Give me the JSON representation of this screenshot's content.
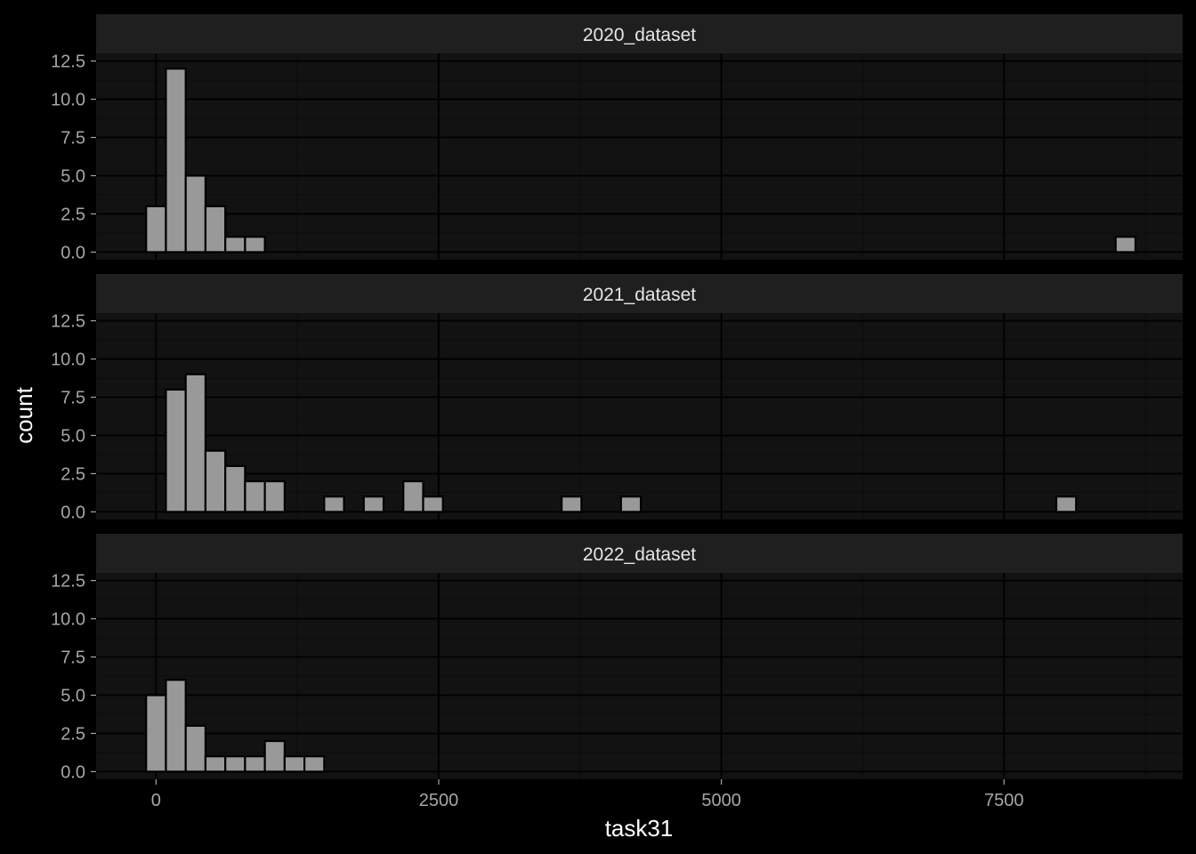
{
  "chart_data": {
    "type": "bar",
    "subtype": "faceted-histogram",
    "xlabel": "task31",
    "ylabel": "count",
    "xlim": [
      -530,
      9080
    ],
    "ylim": [
      -0.5,
      13
    ],
    "x_ticks": [
      0,
      2500,
      5000,
      7500
    ],
    "x_tick_labels": [
      "0",
      "2500",
      "5000",
      "7500"
    ],
    "y_ticks": [
      0,
      2.5,
      5,
      7.5,
      10,
      12.5
    ],
    "y_tick_labels": [
      "0.0",
      "2.5",
      "5.0",
      "7.5",
      "10.0",
      "12.5"
    ],
    "bin_width": 175,
    "bar_fill": "#999999",
    "bar_outline": "#000000",
    "panel_bg": "#121212",
    "strip_bg": "#1f1f1f",
    "grid": true,
    "legend": "none",
    "facets": [
      {
        "label": "2020_dataset",
        "bins": [
          {
            "x": 0,
            "count": 3
          },
          {
            "x": 175,
            "count": 12
          },
          {
            "x": 350,
            "count": 5
          },
          {
            "x": 525,
            "count": 3
          },
          {
            "x": 700,
            "count": 1
          },
          {
            "x": 875,
            "count": 1
          },
          {
            "x": 8575,
            "count": 1
          }
        ]
      },
      {
        "label": "2021_dataset",
        "bins": [
          {
            "x": 175,
            "count": 8
          },
          {
            "x": 350,
            "count": 9
          },
          {
            "x": 525,
            "count": 4
          },
          {
            "x": 700,
            "count": 3
          },
          {
            "x": 875,
            "count": 2
          },
          {
            "x": 1050,
            "count": 2
          },
          {
            "x": 1575,
            "count": 1
          },
          {
            "x": 1925,
            "count": 1
          },
          {
            "x": 2275,
            "count": 2
          },
          {
            "x": 2450,
            "count": 1
          },
          {
            "x": 3675,
            "count": 1
          },
          {
            "x": 4200,
            "count": 1
          },
          {
            "x": 8050,
            "count": 1
          }
        ]
      },
      {
        "label": "2022_dataset",
        "bins": [
          {
            "x": 0,
            "count": 5
          },
          {
            "x": 175,
            "count": 6
          },
          {
            "x": 350,
            "count": 3
          },
          {
            "x": 525,
            "count": 1
          },
          {
            "x": 700,
            "count": 1
          },
          {
            "x": 875,
            "count": 1
          },
          {
            "x": 1050,
            "count": 2
          },
          {
            "x": 1225,
            "count": 1
          },
          {
            "x": 1400,
            "count": 1
          }
        ]
      }
    ]
  }
}
